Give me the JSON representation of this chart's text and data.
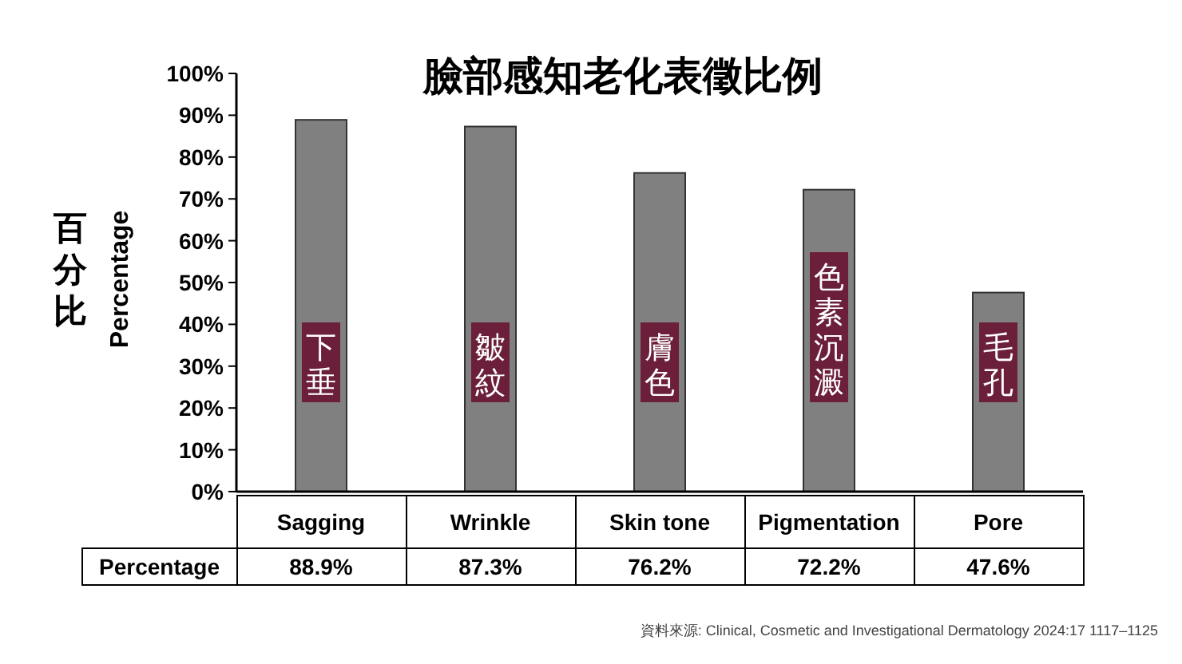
{
  "chart_data": {
    "type": "bar",
    "title": "臉部感知老化表徵比例",
    "ylabel": "Percentage",
    "categories": [
      "Sagging",
      "Wrinkle",
      "Skin tone",
      "Pigmentation",
      "Pore"
    ],
    "values": [
      88.9,
      87.3,
      76.2,
      72.2,
      47.6
    ],
    "value_labels": [
      "88.9%",
      "87.3%",
      "76.2%",
      "72.2%",
      "47.6%"
    ],
    "color": "#808080",
    "ylim": [
      0,
      100
    ],
    "yticks": [
      {
        "value": 0,
        "label": "0%"
      },
      {
        "value": 10,
        "label": "10%"
      },
      {
        "value": 20,
        "label": "20%"
      },
      {
        "value": 30,
        "label": "30%"
      },
      {
        "value": 40,
        "label": "40%"
      },
      {
        "value": 50,
        "label": "50%"
      },
      {
        "value": 60,
        "label": "60%"
      },
      {
        "value": 70,
        "label": "70%"
      },
      {
        "value": 80,
        "label": "80%"
      },
      {
        "value": 90,
        "label": "90%"
      },
      {
        "value": 100,
        "label": "100%"
      }
    ],
    "grid": false,
    "annotations": [
      "百分比",
      "Percentage",
      "下垂",
      "皺紋",
      "膚色",
      "色素沉澱",
      "毛孔",
      "資料來源: Clinical, Cosmetic and Investigational Dermatology 2024:17 1117–1125"
    ]
  }
}
